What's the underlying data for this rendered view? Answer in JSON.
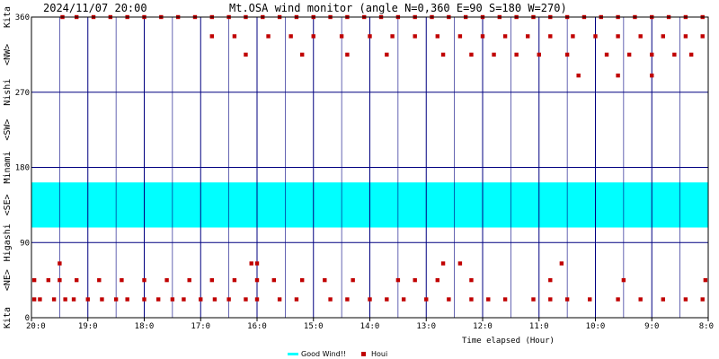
{
  "chart_data": {
    "type": "scatter",
    "title_datetime": "2024/11/07 20:00",
    "title": "Mt.OSA wind monitor (angle N=0,360 E=90 S=180 W=270)",
    "xlabel": "Time elapsed (Hour)",
    "x_direction": "reversed",
    "x_ticks": [
      {
        "hours_ago": 0,
        "label": "20:0"
      },
      {
        "hours_ago": 1,
        "label": "19:0"
      },
      {
        "hours_ago": 2,
        "label": "18:0"
      },
      {
        "hours_ago": 3,
        "label": "17:0"
      },
      {
        "hours_ago": 4,
        "label": "16:0"
      },
      {
        "hours_ago": 5,
        "label": "15:0"
      },
      {
        "hours_ago": 6,
        "label": "14:0"
      },
      {
        "hours_ago": 7,
        "label": "13:0"
      },
      {
        "hours_ago": 8,
        "label": "12:0"
      },
      {
        "hours_ago": 9,
        "label": "11:0"
      },
      {
        "hours_ago": 10,
        "label": "10:0"
      },
      {
        "hours_ago": 11,
        "label": "9:0"
      },
      {
        "hours_ago": 12,
        "label": "8:0"
      }
    ],
    "xlim": [
      0,
      12
    ],
    "ylim": [
      0,
      360
    ],
    "y_ticks": [
      0,
      90,
      180,
      270,
      360
    ],
    "y_direction_labels": [
      {
        "text": "Kita",
        "angle": 0
      },
      {
        "text": "<NE>",
        "angle": 45
      },
      {
        "text": "Higashi",
        "angle": 90
      },
      {
        "text": "<SE>",
        "angle": 135
      },
      {
        "text": "Minami",
        "angle": 180
      },
      {
        "text": "<SW>",
        "angle": 225
      },
      {
        "text": "Nishi",
        "angle": 270
      },
      {
        "text": "<NW>",
        "angle": 315
      },
      {
        "text": "Kita",
        "angle": 360
      }
    ],
    "good_wind_band": {
      "name": "Good Wind!!",
      "from": 108,
      "to": 162,
      "color": "#00ffff"
    },
    "series": [
      {
        "name": "Houi",
        "color": "#c00000",
        "points": [
          {
            "x": 0.05,
            "y": 22
          },
          {
            "x": 0.15,
            "y": 22
          },
          {
            "x": 0.4,
            "y": 22
          },
          {
            "x": 0.6,
            "y": 22
          },
          {
            "x": 0.75,
            "y": 22
          },
          {
            "x": 1.0,
            "y": 22
          },
          {
            "x": 1.25,
            "y": 22
          },
          {
            "x": 1.5,
            "y": 22
          },
          {
            "x": 1.7,
            "y": 22
          },
          {
            "x": 2.0,
            "y": 22
          },
          {
            "x": 2.25,
            "y": 22
          },
          {
            "x": 2.5,
            "y": 22
          },
          {
            "x": 2.7,
            "y": 22
          },
          {
            "x": 3.0,
            "y": 22
          },
          {
            "x": 3.25,
            "y": 22
          },
          {
            "x": 3.5,
            "y": 22
          },
          {
            "x": 3.8,
            "y": 22
          },
          {
            "x": 4.0,
            "y": 22
          },
          {
            "x": 4.4,
            "y": 22
          },
          {
            "x": 4.7,
            "y": 22
          },
          {
            "x": 5.3,
            "y": 22
          },
          {
            "x": 5.6,
            "y": 22
          },
          {
            "x": 6.0,
            "y": 22
          },
          {
            "x": 6.3,
            "y": 22
          },
          {
            "x": 6.6,
            "y": 22
          },
          {
            "x": 7.0,
            "y": 22
          },
          {
            "x": 7.4,
            "y": 22
          },
          {
            "x": 7.8,
            "y": 22
          },
          {
            "x": 8.1,
            "y": 22
          },
          {
            "x": 8.4,
            "y": 22
          },
          {
            "x": 8.9,
            "y": 22
          },
          {
            "x": 9.2,
            "y": 22
          },
          {
            "x": 9.5,
            "y": 22
          },
          {
            "x": 9.9,
            "y": 22
          },
          {
            "x": 10.4,
            "y": 22
          },
          {
            "x": 10.8,
            "y": 22
          },
          {
            "x": 11.2,
            "y": 22
          },
          {
            "x": 11.6,
            "y": 22
          },
          {
            "x": 11.9,
            "y": 22
          },
          {
            "x": 0.05,
            "y": 45
          },
          {
            "x": 0.3,
            "y": 45
          },
          {
            "x": 0.5,
            "y": 45
          },
          {
            "x": 0.8,
            "y": 45
          },
          {
            "x": 1.2,
            "y": 45
          },
          {
            "x": 1.6,
            "y": 45
          },
          {
            "x": 2.0,
            "y": 45
          },
          {
            "x": 2.4,
            "y": 45
          },
          {
            "x": 2.8,
            "y": 45
          },
          {
            "x": 3.2,
            "y": 45
          },
          {
            "x": 3.6,
            "y": 45
          },
          {
            "x": 4.0,
            "y": 45
          },
          {
            "x": 4.3,
            "y": 45
          },
          {
            "x": 4.8,
            "y": 45
          },
          {
            "x": 5.2,
            "y": 45
          },
          {
            "x": 5.7,
            "y": 45
          },
          {
            "x": 6.5,
            "y": 45
          },
          {
            "x": 6.8,
            "y": 45
          },
          {
            "x": 7.2,
            "y": 45
          },
          {
            "x": 7.8,
            "y": 45
          },
          {
            "x": 9.2,
            "y": 45
          },
          {
            "x": 10.5,
            "y": 45
          },
          {
            "x": 11.95,
            "y": 45
          },
          {
            "x": 0.5,
            "y": 65
          },
          {
            "x": 3.9,
            "y": 65
          },
          {
            "x": 4.0,
            "y": 65
          },
          {
            "x": 7.3,
            "y": 65
          },
          {
            "x": 7.6,
            "y": 65
          },
          {
            "x": 9.4,
            "y": 65
          },
          {
            "x": 0.55,
            "y": 360
          },
          {
            "x": 0.8,
            "y": 360
          },
          {
            "x": 1.1,
            "y": 360
          },
          {
            "x": 1.4,
            "y": 360
          },
          {
            "x": 1.7,
            "y": 360
          },
          {
            "x": 2.0,
            "y": 360
          },
          {
            "x": 2.3,
            "y": 360
          },
          {
            "x": 2.6,
            "y": 360
          },
          {
            "x": 2.9,
            "y": 360
          },
          {
            "x": 3.2,
            "y": 360
          },
          {
            "x": 3.5,
            "y": 360
          },
          {
            "x": 3.8,
            "y": 360
          },
          {
            "x": 4.1,
            "y": 360
          },
          {
            "x": 4.4,
            "y": 360
          },
          {
            "x": 4.7,
            "y": 360
          },
          {
            "x": 5.0,
            "y": 360
          },
          {
            "x": 5.3,
            "y": 360
          },
          {
            "x": 5.6,
            "y": 360
          },
          {
            "x": 5.9,
            "y": 360
          },
          {
            "x": 6.2,
            "y": 360
          },
          {
            "x": 6.5,
            "y": 360
          },
          {
            "x": 6.8,
            "y": 360
          },
          {
            "x": 7.1,
            "y": 360
          },
          {
            "x": 7.4,
            "y": 360
          },
          {
            "x": 7.7,
            "y": 360
          },
          {
            "x": 8.0,
            "y": 360
          },
          {
            "x": 8.3,
            "y": 360
          },
          {
            "x": 8.6,
            "y": 360
          },
          {
            "x": 8.9,
            "y": 360
          },
          {
            "x": 9.2,
            "y": 360
          },
          {
            "x": 9.5,
            "y": 360
          },
          {
            "x": 9.8,
            "y": 360
          },
          {
            "x": 10.1,
            "y": 360
          },
          {
            "x": 10.4,
            "y": 360
          },
          {
            "x": 10.7,
            "y": 360
          },
          {
            "x": 11.0,
            "y": 360
          },
          {
            "x": 11.3,
            "y": 360
          },
          {
            "x": 11.6,
            "y": 360
          },
          {
            "x": 11.9,
            "y": 360
          },
          {
            "x": 3.2,
            "y": 337
          },
          {
            "x": 3.6,
            "y": 337
          },
          {
            "x": 4.2,
            "y": 337
          },
          {
            "x": 4.6,
            "y": 337
          },
          {
            "x": 5.0,
            "y": 337
          },
          {
            "x": 5.5,
            "y": 337
          },
          {
            "x": 6.0,
            "y": 337
          },
          {
            "x": 6.4,
            "y": 337
          },
          {
            "x": 6.8,
            "y": 337
          },
          {
            "x": 7.2,
            "y": 337
          },
          {
            "x": 7.6,
            "y": 337
          },
          {
            "x": 8.0,
            "y": 337
          },
          {
            "x": 8.4,
            "y": 337
          },
          {
            "x": 8.8,
            "y": 337
          },
          {
            "x": 9.2,
            "y": 337
          },
          {
            "x": 9.6,
            "y": 337
          },
          {
            "x": 10.0,
            "y": 337
          },
          {
            "x": 10.4,
            "y": 337
          },
          {
            "x": 10.8,
            "y": 337
          },
          {
            "x": 11.2,
            "y": 337
          },
          {
            "x": 11.6,
            "y": 337
          },
          {
            "x": 11.9,
            "y": 337
          },
          {
            "x": 3.8,
            "y": 315
          },
          {
            "x": 4.8,
            "y": 315
          },
          {
            "x": 5.6,
            "y": 315
          },
          {
            "x": 6.3,
            "y": 315
          },
          {
            "x": 7.3,
            "y": 315
          },
          {
            "x": 7.8,
            "y": 315
          },
          {
            "x": 8.2,
            "y": 315
          },
          {
            "x": 8.6,
            "y": 315
          },
          {
            "x": 9.0,
            "y": 315
          },
          {
            "x": 9.5,
            "y": 315
          },
          {
            "x": 10.2,
            "y": 315
          },
          {
            "x": 10.6,
            "y": 315
          },
          {
            "x": 11.0,
            "y": 315
          },
          {
            "x": 11.4,
            "y": 315
          },
          {
            "x": 11.7,
            "y": 315
          },
          {
            "x": 9.7,
            "y": 290
          },
          {
            "x": 10.4,
            "y": 290
          },
          {
            "x": 11.0,
            "y": 290
          }
        ]
      }
    ],
    "legend": {
      "position": "bottom-center"
    }
  }
}
